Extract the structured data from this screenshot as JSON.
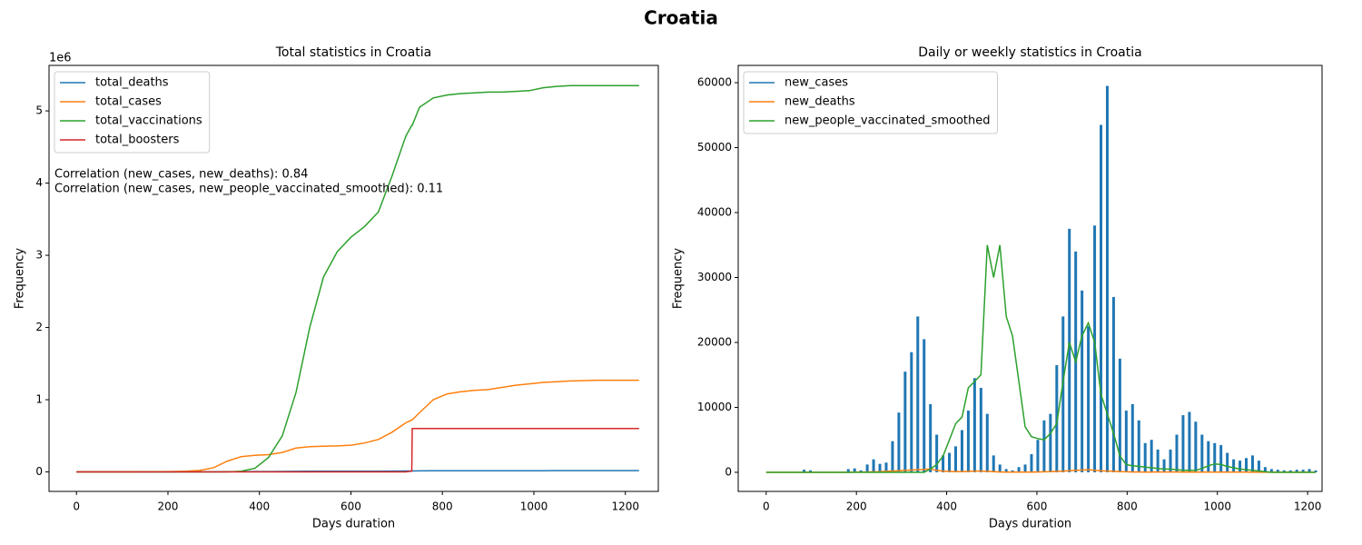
{
  "title": "Croatia",
  "chart_data": [
    {
      "type": "line",
      "title": "Total statistics in Croatia",
      "x_label": "Days duration",
      "y_label": "Frequency",
      "y_offset_label": "1e6",
      "xlim": [
        -60,
        1272
      ],
      "ylim": [
        -0.27,
        5.63
      ],
      "xticks": [
        0,
        200,
        400,
        600,
        800,
        1000,
        1200
      ],
      "yticks": [
        0,
        1,
        2,
        3,
        4,
        5
      ],
      "legend": "upper left",
      "annotations": [
        "Correlation (new_cases, new_deaths): 0.84",
        "Correlation (new_cases, new_people_vaccinated_smoothed): 0.11"
      ],
      "x": [
        0,
        30,
        60,
        90,
        120,
        150,
        180,
        210,
        240,
        270,
        300,
        330,
        360,
        390,
        420,
        450,
        480,
        510,
        540,
        570,
        600,
        630,
        660,
        690,
        720,
        733,
        734,
        750,
        780,
        810,
        840,
        870,
        900,
        930,
        960,
        990,
        1020,
        1050,
        1080,
        1110,
        1140,
        1170,
        1200,
        1230
      ],
      "series": [
        {
          "name": "total_deaths",
          "color": "#1f77b4",
          "values": [
            0,
            0,
            0,
            0,
            0,
            0,
            0,
            0,
            0,
            0.001,
            0.002,
            0.003,
            0.004,
            0.005,
            0.006,
            0.007,
            0.008,
            0.009,
            0.009,
            0.009,
            0.01,
            0.01,
            0.011,
            0.012,
            0.013,
            0.013,
            0.013,
            0.014,
            0.015,
            0.016,
            0.016,
            0.016,
            0.017,
            0.017,
            0.017,
            0.017,
            0.017,
            0.018,
            0.018,
            0.018,
            0.018,
            0.018,
            0.018,
            0.018
          ]
        },
        {
          "name": "total_cases",
          "color": "#ff7f0e",
          "values": [
            0,
            0,
            0,
            0,
            0.001,
            0.002,
            0.003,
            0.005,
            0.01,
            0.02,
            0.06,
            0.15,
            0.21,
            0.23,
            0.24,
            0.27,
            0.33,
            0.35,
            0.355,
            0.36,
            0.37,
            0.4,
            0.45,
            0.55,
            0.68,
            0.72,
            0.72,
            0.82,
            1.0,
            1.08,
            1.11,
            1.13,
            1.14,
            1.17,
            1.2,
            1.22,
            1.24,
            1.25,
            1.26,
            1.265,
            1.27,
            1.27,
            1.27,
            1.27
          ]
        },
        {
          "name": "total_vaccinations",
          "color": "#2ca02c",
          "values": [
            0,
            0,
            0,
            0,
            0,
            0,
            0,
            0,
            0,
            0,
            0,
            0,
            0.01,
            0.05,
            0.2,
            0.5,
            1.1,
            2.0,
            2.7,
            3.05,
            3.25,
            3.4,
            3.6,
            4.1,
            4.65,
            4.8,
            4.8,
            5.05,
            5.18,
            5.22,
            5.24,
            5.25,
            5.26,
            5.26,
            5.27,
            5.28,
            5.32,
            5.34,
            5.35,
            5.35,
            5.35,
            5.35,
            5.35,
            5.35
          ]
        },
        {
          "name": "total_boosters",
          "color": "#d62728",
          "values": [
            0,
            0,
            0,
            0,
            0,
            0,
            0,
            0,
            0,
            0,
            0,
            0,
            0,
            0,
            0,
            0,
            0,
            0,
            0,
            0,
            0,
            0,
            0,
            0,
            0,
            0.01,
            0.6,
            0.6,
            0.6,
            0.6,
            0.6,
            0.6,
            0.6,
            0.6,
            0.6,
            0.6,
            0.6,
            0.6,
            0.6,
            0.6,
            0.6,
            0.6,
            0.6,
            0.6
          ]
        }
      ]
    },
    {
      "type": "line",
      "title": "Daily or weekly statistics in Croatia",
      "x_label": "Days duration",
      "y_label": "Frequency",
      "xlim": [
        -62,
        1232
      ],
      "ylim": [
        -2940,
        62660
      ],
      "xticks": [
        0,
        200,
        400,
        600,
        800,
        1000,
        1200
      ],
      "yticks": [
        0,
        10000,
        20000,
        30000,
        40000,
        50000,
        60000
      ],
      "legend": "upper left",
      "x": [
        0,
        14,
        28,
        42,
        56,
        70,
        84,
        98,
        112,
        126,
        140,
        154,
        168,
        182,
        196,
        210,
        224,
        238,
        252,
        266,
        280,
        294,
        308,
        322,
        336,
        350,
        364,
        378,
        392,
        406,
        420,
        434,
        448,
        462,
        476,
        490,
        504,
        518,
        532,
        546,
        560,
        574,
        588,
        602,
        616,
        630,
        644,
        658,
        672,
        686,
        700,
        714,
        728,
        742,
        756,
        770,
        784,
        798,
        812,
        826,
        840,
        854,
        868,
        882,
        896,
        910,
        924,
        938,
        952,
        966,
        980,
        994,
        1008,
        1022,
        1036,
        1050,
        1064,
        1078,
        1092,
        1106,
        1120,
        1134,
        1148,
        1162,
        1176,
        1190,
        1204,
        1218
      ],
      "series": [
        {
          "name": "new_cases",
          "color": "#1f77b4",
          "type": "bar",
          "values": [
            0,
            0,
            0,
            0,
            0,
            0,
            400,
            300,
            100,
            0,
            0,
            0,
            0,
            500,
            600,
            300,
            1200,
            2000,
            1300,
            1500,
            4800,
            9200,
            15500,
            18500,
            24000,
            20500,
            10500,
            5800,
            2600,
            3000,
            4000,
            6500,
            9500,
            14500,
            13000,
            9000,
            2600,
            1200,
            500,
            300,
            800,
            1200,
            2800,
            5000,
            8000,
            9000,
            16500,
            24000,
            37500,
            34000,
            28000,
            22500,
            38000,
            53500,
            59500,
            27000,
            17500,
            9500,
            10500,
            8000,
            4500,
            5000,
            3500,
            2000,
            3500,
            5800,
            8800,
            9300,
            7800,
            5800,
            4800,
            4500,
            4200,
            3000,
            2000,
            1800,
            2200,
            2600,
            1800,
            800,
            500,
            400,
            300,
            300,
            400,
            400,
            500,
            300
          ]
        },
        {
          "name": "new_deaths",
          "color": "#ff7f0e",
          "type": "line",
          "values": [
            0,
            0,
            0,
            0,
            0,
            0,
            0,
            0,
            0,
            0,
            0,
            0,
            0,
            0,
            20,
            30,
            50,
            80,
            100,
            150,
            200,
            250,
            300,
            350,
            400,
            450,
            500,
            300,
            200,
            150,
            100,
            100,
            150,
            200,
            200,
            150,
            100,
            50,
            30,
            20,
            20,
            20,
            30,
            50,
            80,
            100,
            150,
            200,
            250,
            300,
            350,
            400,
            300,
            250,
            200,
            150,
            100,
            80,
            60,
            50,
            40,
            40,
            50,
            60,
            60,
            50,
            40,
            30,
            30,
            30,
            30,
            20,
            20,
            20,
            20,
            20,
            20,
            10,
            10,
            10,
            5,
            5,
            5,
            5,
            5,
            5,
            5,
            5
          ]
        },
        {
          "name": "new_people_vaccinated_smoothed",
          "color": "#2ca02c",
          "type": "line",
          "values": [
            0,
            0,
            0,
            0,
            0,
            0,
            0,
            0,
            0,
            0,
            0,
            0,
            0,
            0,
            0,
            0,
            0,
            0,
            0,
            0,
            0,
            0,
            0,
            0,
            0,
            0,
            500,
            1200,
            2500,
            5000,
            7500,
            8500,
            13000,
            14000,
            15000,
            35000,
            30000,
            35000,
            24000,
            21000,
            14000,
            7000,
            5500,
            5200,
            5000,
            6000,
            7500,
            14000,
            20000,
            17000,
            21000,
            23000,
            20000,
            12000,
            9000,
            6000,
            2500,
            1200,
            1000,
            900,
            800,
            700,
            600,
            500,
            500,
            400,
            300,
            300,
            300,
            600,
            1000,
            1300,
            1200,
            900,
            700,
            500,
            400,
            300,
            200,
            100,
            0,
            0,
            0,
            0,
            0,
            0,
            0,
            0
          ]
        }
      ]
    }
  ]
}
